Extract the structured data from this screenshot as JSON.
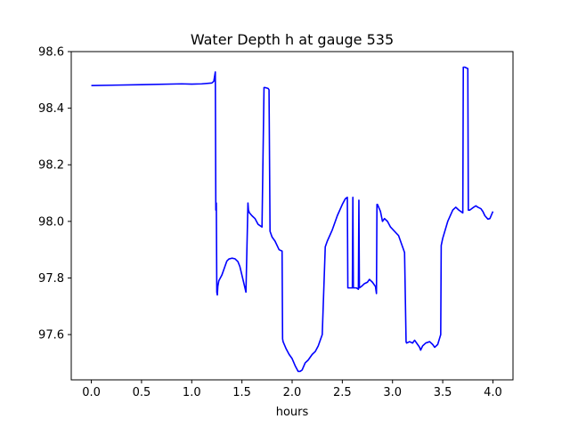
{
  "chart_data": {
    "type": "line",
    "title": "Water Depth h at gauge 535",
    "xlabel": "hours",
    "ylabel": "",
    "xlim": [
      -0.2,
      4.2
    ],
    "ylim": [
      97.44,
      98.6
    ],
    "x_ticks": [
      0.0,
      0.5,
      1.0,
      1.5,
      2.0,
      2.5,
      3.0,
      3.5,
      4.0
    ],
    "x_tick_labels": [
      "0.0",
      "0.5",
      "1.0",
      "1.5",
      "2.0",
      "2.5",
      "3.0",
      "3.5",
      "4.0"
    ],
    "y_ticks": [
      97.6,
      97.8,
      98.0,
      98.2,
      98.4,
      98.6
    ],
    "y_tick_labels": [
      "97.6",
      "97.8",
      "98.0",
      "98.2",
      "98.4",
      "98.6"
    ],
    "grid": false,
    "legend": "none",
    "series": [
      {
        "color": "#0000ff",
        "x": [
          0.0,
          0.5,
          0.9,
          1.0,
          1.1,
          1.2,
          1.22,
          1.235,
          1.24,
          1.245,
          1.25,
          1.255,
          1.26,
          1.27,
          1.3,
          1.33,
          1.35,
          1.37,
          1.4,
          1.43,
          1.46,
          1.48,
          1.5,
          1.52,
          1.54,
          1.56,
          1.565,
          1.575,
          1.6,
          1.63,
          1.66,
          1.7,
          1.72,
          1.73,
          1.76,
          1.77,
          1.78,
          1.8,
          1.83,
          1.87,
          1.9,
          1.905,
          1.91,
          1.94,
          1.97,
          2.0,
          2.03,
          2.06,
          2.08,
          2.1,
          2.13,
          2.16,
          2.2,
          2.23,
          2.26,
          2.3,
          2.33,
          2.34,
          2.35,
          2.4,
          2.45,
          2.5,
          2.53,
          2.55,
          2.555,
          2.6,
          2.605,
          2.61,
          2.62,
          2.64,
          2.66,
          2.665,
          2.67,
          2.69,
          2.72,
          2.75,
          2.77,
          2.8,
          2.83,
          2.84,
          2.845,
          2.85,
          2.88,
          2.9,
          2.92,
          2.95,
          2.98,
          3.02,
          3.06,
          3.1,
          3.12,
          3.135,
          3.14,
          3.17,
          3.2,
          3.22,
          3.25,
          3.27,
          3.28,
          3.3,
          3.33,
          3.37,
          3.4,
          3.42,
          3.45,
          3.48,
          3.485,
          3.5,
          3.55,
          3.6,
          3.63,
          3.66,
          3.7,
          3.705,
          3.72,
          3.75,
          3.755,
          3.77,
          3.8,
          3.83,
          3.85,
          3.88,
          3.9,
          3.92,
          3.95,
          3.97,
          4.0
        ],
        "y": [
          98.48,
          98.483,
          98.486,
          98.485,
          98.486,
          98.489,
          98.495,
          98.528,
          98.04,
          98.065,
          97.75,
          97.74,
          97.77,
          97.79,
          97.81,
          97.84,
          97.86,
          97.867,
          97.87,
          97.868,
          97.858,
          97.84,
          97.81,
          97.78,
          97.75,
          98.065,
          98.04,
          98.03,
          98.02,
          98.01,
          97.99,
          97.98,
          98.473,
          98.473,
          98.47,
          98.465,
          97.965,
          97.945,
          97.93,
          97.9,
          97.895,
          97.585,
          97.575,
          97.55,
          97.53,
          97.515,
          97.49,
          97.47,
          97.47,
          97.475,
          97.5,
          97.51,
          97.53,
          97.54,
          97.56,
          97.6,
          97.91,
          97.92,
          97.93,
          97.97,
          98.02,
          98.06,
          98.08,
          98.085,
          97.765,
          97.765,
          98.085,
          97.765,
          97.765,
          97.765,
          97.76,
          98.075,
          97.765,
          97.77,
          97.78,
          97.785,
          97.795,
          97.785,
          97.77,
          97.745,
          98.06,
          98.06,
          98.035,
          98.0,
          98.01,
          98.0,
          97.98,
          97.965,
          97.95,
          97.91,
          97.89,
          97.575,
          97.57,
          97.575,
          97.57,
          97.58,
          97.565,
          97.555,
          97.545,
          97.56,
          97.57,
          97.575,
          97.565,
          97.555,
          97.565,
          97.6,
          97.915,
          97.94,
          98.0,
          98.04,
          98.05,
          98.04,
          98.03,
          98.545,
          98.545,
          98.54,
          98.04,
          98.04,
          98.048,
          98.055,
          98.05,
          98.045,
          98.035,
          98.02,
          98.008,
          98.01,
          98.035
        ]
      }
    ]
  }
}
